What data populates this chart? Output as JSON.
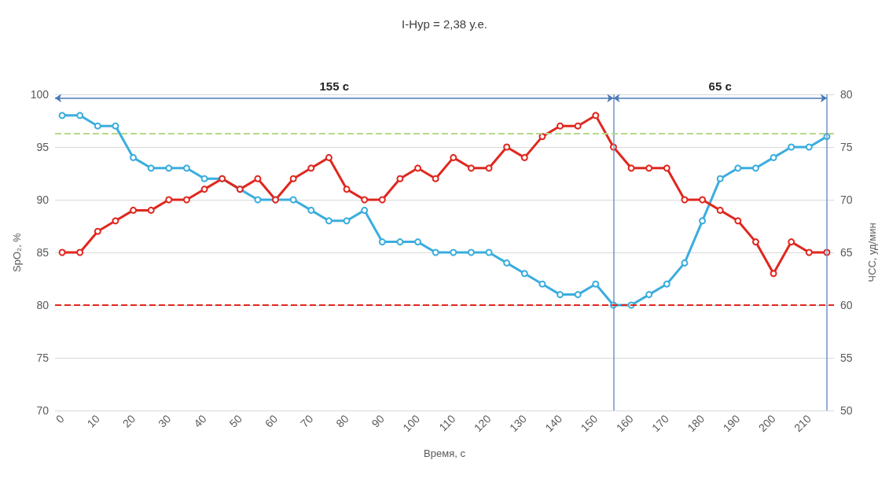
{
  "chart_data": {
    "type": "line",
    "title": "I-Hyp = 2,38 у.е.",
    "xlabel": "Время, с",
    "ylabel": "SpO₂, %",
    "y2label": "ЧСС, уд/мин",
    "annotations": [
      "155 с",
      "65 с"
    ],
    "x": [
      0,
      5,
      10,
      15,
      20,
      25,
      30,
      35,
      40,
      45,
      50,
      55,
      60,
      65,
      70,
      75,
      80,
      85,
      90,
      95,
      100,
      105,
      110,
      115,
      120,
      125,
      130,
      135,
      140,
      145,
      150,
      155,
      160,
      165,
      170,
      175,
      180,
      185,
      190,
      195,
      200,
      205,
      210,
      215
    ],
    "series": [
      {
        "color": "#3badde",
        "values": [
          98,
          98,
          97,
          97,
          94,
          93,
          93,
          93,
          92,
          92,
          91,
          90,
          90,
          90,
          89,
          88,
          88,
          89,
          86,
          86,
          86,
          85,
          85,
          85,
          85,
          84,
          83,
          82,
          81,
          81,
          82,
          80,
          80,
          81,
          82,
          84,
          88,
          92,
          93,
          93,
          94,
          95,
          95,
          96
        ]
      },
      {
        "color": "#e0271e",
        "axis": "y2",
        "values": [
          65,
          65,
          67,
          68,
          69,
          69,
          70,
          70,
          71,
          72,
          71,
          72,
          70,
          72,
          73,
          74,
          71,
          70,
          70,
          72,
          73,
          72,
          74,
          73,
          73,
          75,
          74,
          76,
          77,
          77,
          78,
          75,
          73,
          73,
          73,
          70,
          70,
          69,
          68,
          66,
          63,
          66,
          65,
          65
        ]
      }
    ],
    "xlim": [
      -2,
      217
    ],
    "xticks": [
      0,
      10,
      20,
      30,
      40,
      50,
      60,
      70,
      80,
      90,
      100,
      110,
      120,
      130,
      140,
      150,
      160,
      170,
      180,
      190,
      200,
      210
    ],
    "ylim": [
      70,
      100
    ],
    "yticks": [
      70,
      75,
      80,
      85,
      90,
      95,
      100
    ],
    "y2lim": [
      50,
      80
    ],
    "y2ticks": [
      50,
      55,
      60,
      65,
      70,
      75,
      80
    ],
    "ref_lines": [
      {
        "axis": "x",
        "value": 155,
        "color": "#6f95c8",
        "line_style": "solid"
      },
      {
        "axis": "x",
        "value": 215,
        "color": "#6f95c8",
        "line_style": "solid"
      },
      {
        "axis": "y",
        "value": 96.3,
        "color": "#b5d98a",
        "line_style": "dashed"
      },
      {
        "axis": "y",
        "value": 80,
        "color": "#e0271e",
        "line_style": "dashed"
      }
    ],
    "grid": "y",
    "marker": "circle",
    "line_style": "solid"
  }
}
